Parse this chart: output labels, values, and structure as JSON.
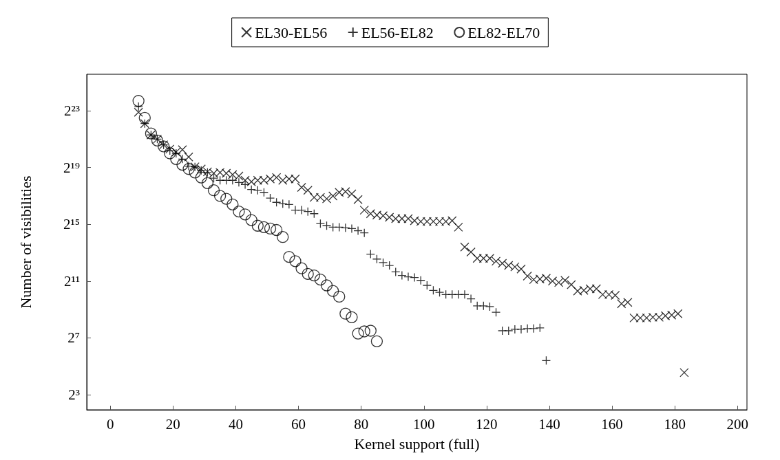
{
  "chart_data": {
    "type": "scatter",
    "xlabel": "Kernel support (full)",
    "ylabel": "Number of visibilities",
    "log": "y",
    "grid": false,
    "legend": "top",
    "xlim": [
      -7.5,
      203
    ],
    "xticks": [
      0,
      20,
      40,
      60,
      80,
      100,
      120,
      140,
      160,
      180,
      200
    ],
    "ylim": [
      3.8,
      50000000
    ],
    "yticks": [
      {
        "value": 8,
        "label": "2³"
      },
      {
        "value": 128,
        "label": "2⁷"
      },
      {
        "value": 2048,
        "label": "2¹¹"
      },
      {
        "value": 32768,
        "label": "2¹⁵"
      },
      {
        "value": 524288,
        "label": "2¹⁹"
      },
      {
        "value": 8388608,
        "label": "2²³"
      }
    ],
    "series": [
      {
        "name": "EL30-EL56",
        "color": "#000000",
        "marker": "x",
        "x": [
          9,
          11,
          13,
          15,
          17,
          19,
          21,
          23,
          25,
          27,
          29,
          31,
          33,
          35,
          37,
          39,
          41,
          43,
          45,
          47,
          49,
          51,
          53,
          55,
          57,
          59,
          61,
          63,
          65,
          67,
          69,
          71,
          73,
          75,
          77,
          79,
          81,
          83,
          85,
          87,
          89,
          91,
          93,
          95,
          97,
          99,
          101,
          103,
          105,
          107,
          109,
          111,
          113,
          115,
          117,
          119,
          121,
          123,
          125,
          127,
          129,
          131,
          133,
          135,
          137,
          139,
          141,
          143,
          145,
          147,
          149,
          151,
          153,
          155,
          157,
          159,
          161,
          163,
          165,
          167,
          169,
          171,
          173,
          175,
          177,
          179,
          181,
          183
        ],
        "values": [
          7830000,
          4500000,
          2580000,
          2100000,
          1590000,
          1290000,
          1120000,
          1250000,
          882000,
          543000,
          489000,
          426000,
          397000,
          412000,
          397000,
          371000,
          346000,
          281000,
          262000,
          281000,
          281000,
          301000,
          323000,
          281000,
          301000,
          301000,
          199000,
          173000,
          122000,
          122000,
          114000,
          131000,
          156000,
          161000,
          145000,
          110000,
          65500,
          55100,
          51400,
          49700,
          46300,
          43300,
          43300,
          43300,
          39000,
          37600,
          37600,
          37600,
          37600,
          37600,
          39000,
          28500,
          10800,
          8480,
          6210,
          6210,
          6210,
          5410,
          4870,
          4390,
          4100,
          3690,
          2610,
          2200,
          2270,
          2350,
          2050,
          1910,
          2120,
          1720,
          1260,
          1300,
          1400,
          1400,
          1060,
          1060,
          1020,
          676,
          724,
          338,
          338,
          338,
          350,
          350,
          375,
          388,
          416,
          23.4
        ]
      },
      {
        "name": "EL56-EL82",
        "color": "#000000",
        "marker": "cross",
        "x": [
          9,
          11,
          13,
          15,
          17,
          19,
          21,
          23,
          25,
          27,
          29,
          31,
          33,
          35,
          37,
          39,
          41,
          43,
          45,
          47,
          49,
          51,
          53,
          55,
          57,
          59,
          61,
          63,
          65,
          67,
          69,
          71,
          73,
          75,
          77,
          79,
          81,
          83,
          85,
          87,
          89,
          91,
          93,
          95,
          97,
          99,
          101,
          103,
          105,
          107,
          109,
          111,
          113,
          115,
          117,
          119,
          121,
          123,
          125,
          127,
          129,
          131,
          133,
          135,
          137,
          139
        ],
        "values": [
          10300000,
          4500000,
          2580000,
          2100000,
          1590000,
          1200000,
          1050000,
          795000,
          562000,
          543000,
          456000,
          412000,
          312000,
          281000,
          281000,
          281000,
          253000,
          228000,
          179000,
          173000,
          156000,
          118000,
          95900,
          89400,
          86500,
          65500,
          65500,
          61100,
          55100,
          33900,
          30600,
          28500,
          28500,
          27600,
          26600,
          24000,
          21600,
          7640,
          6000,
          5040,
          4390,
          3210,
          2700,
          2520,
          2435,
          2120,
          1660,
          1300,
          1180,
          1060,
          1060,
          1060,
          1060,
          861,
          609,
          609,
          588,
          446,
          181,
          181,
          194,
          194,
          201,
          201,
          208,
          42.2
        ]
      },
      {
        "name": "EL82-EL70",
        "color": "#000000",
        "marker": "circle",
        "x": [
          9,
          11,
          13,
          15,
          17,
          19,
          21,
          23,
          25,
          27,
          29,
          31,
          33,
          35,
          37,
          39,
          41,
          43,
          45,
          47,
          49,
          51,
          53,
          55,
          57,
          59,
          61,
          63,
          65,
          67,
          69,
          71,
          73,
          75,
          77,
          79,
          81,
          83,
          85
        ],
        "values": [
          13600000,
          5930000,
          2770000,
          1960000,
          1480000,
          1050000,
          795000,
          602000,
          489000,
          412000,
          323000,
          245000,
          173000,
          131000,
          114000,
          86500,
          61100,
          53200,
          40300,
          30600,
          28500,
          26600,
          24800,
          17600,
          6660,
          5410,
          3820,
          2900,
          2700,
          2200,
          1660,
          1260,
          955,
          416,
          350,
          158,
          175,
          181,
          108
        ]
      }
    ]
  }
}
